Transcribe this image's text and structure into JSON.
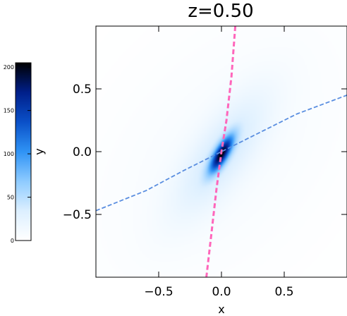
{
  "chart_data": {
    "type": "heatmap",
    "title": "z=0.50",
    "xlabel": "x",
    "ylabel": "y",
    "xlim": [
      -1.0,
      1.0
    ],
    "ylim": [
      -1.0,
      1.0
    ],
    "x_ticks": [
      -0.5,
      0.0,
      0.5
    ],
    "x_tick_labels": [
      "−0.5",
      "0.0",
      "0.5"
    ],
    "y_ticks": [
      -0.5,
      0.0,
      0.5
    ],
    "y_tick_labels": [
      "−0.5",
      "0.0",
      "0.5"
    ],
    "colorbar": {
      "range": [
        0,
        205
      ],
      "ticks": [
        0,
        50,
        100,
        150,
        200
      ],
      "tick_labels": [
        "0",
        "50",
        "100",
        "150",
        "200"
      ],
      "colormap": [
        "#ffffff",
        "#dcefff",
        "#8ecbff",
        "#2f93f5",
        "#0a50c8",
        "#001f8a",
        "#000000"
      ]
    },
    "field": {
      "peak_value": 205,
      "center": [
        0.0,
        -0.02
      ],
      "components": [
        {
          "amplitude": 1.0,
          "major_axis_angle_deg": 60,
          "sigma_major": 0.11,
          "sigma_minor": 0.035
        },
        {
          "amplitude": 0.2,
          "major_axis_angle_deg": 55,
          "sigma_major": 0.38,
          "sigma_minor": 0.14
        },
        {
          "amplitude": 0.05,
          "major_axis_angle_deg": 50,
          "sigma_major": 0.9,
          "sigma_minor": 0.55
        }
      ]
    },
    "lines": [
      {
        "style": "dashed",
        "color": "#ff66bb",
        "points": [
          [
            0.11,
            1.0
          ],
          [
            0.08,
            0.6
          ],
          [
            0.04,
            0.25
          ],
          [
            0.0,
            0.0
          ],
          [
            -0.04,
            -0.3
          ],
          [
            -0.08,
            -0.65
          ],
          [
            -0.12,
            -1.0
          ]
        ]
      },
      {
        "style": "dashed",
        "color": "#5a8ee0",
        "points": [
          [
            -1.0,
            -0.47
          ],
          [
            -0.6,
            -0.31
          ],
          [
            -0.3,
            -0.15
          ],
          [
            0.0,
            0.0
          ],
          [
            0.3,
            0.15
          ],
          [
            0.6,
            0.3
          ],
          [
            1.0,
            0.45
          ]
        ]
      }
    ]
  }
}
